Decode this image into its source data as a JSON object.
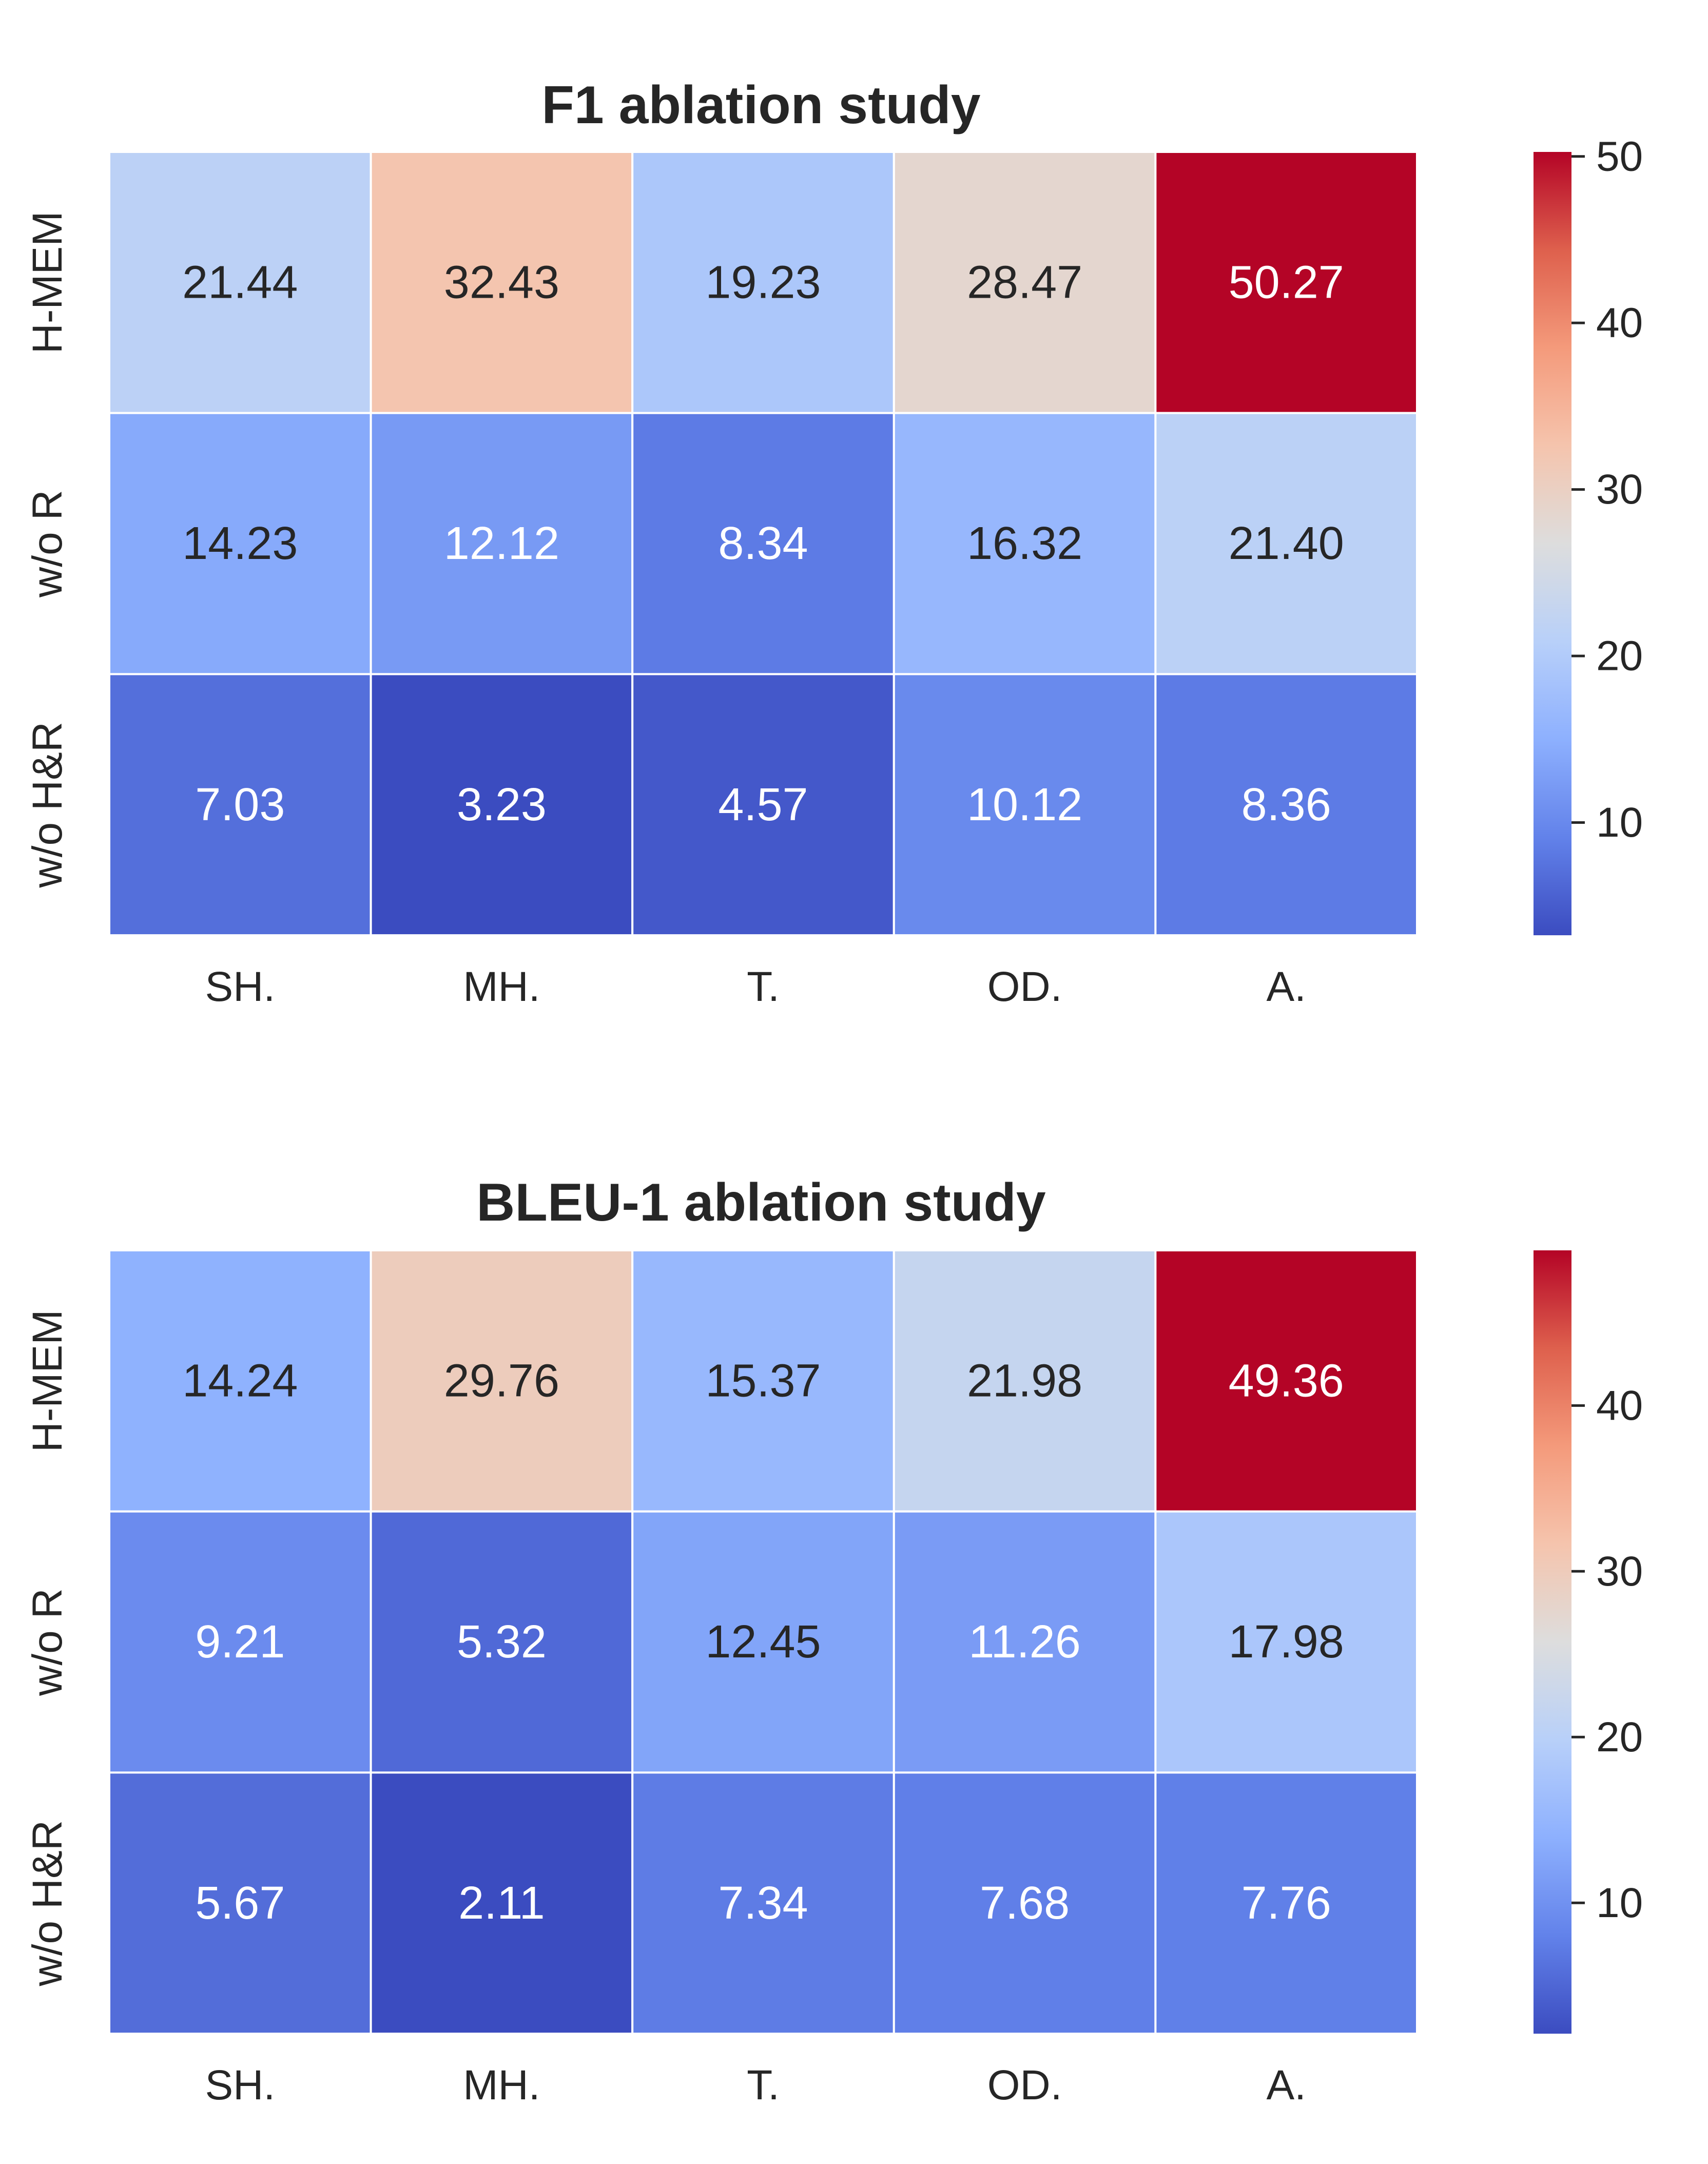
{
  "chart_data": [
    {
      "type": "heatmap",
      "title": "F1 ablation study",
      "colormap": "coolwarm",
      "x_categories": [
        "SH.",
        "MH.",
        "T.",
        "OD.",
        "A."
      ],
      "y_categories": [
        "H-MEM",
        "w/o R",
        "w/o H&R"
      ],
      "values": [
        [
          21.44,
          32.43,
          19.23,
          28.47,
          50.27
        ],
        [
          14.23,
          12.12,
          8.34,
          16.32,
          21.4
        ],
        [
          7.03,
          3.23,
          4.57,
          10.12,
          8.36
        ]
      ],
      "value_format": "2 decimals",
      "color_range": [
        3.23,
        50.27
      ],
      "colorbar_ticks": [
        10,
        20,
        30,
        40,
        50
      ],
      "grid_lines": "white",
      "colorbar_placement": "right"
    },
    {
      "type": "heatmap",
      "title": "BLEU-1 ablation study",
      "colormap": "coolwarm",
      "x_categories": [
        "SH.",
        "MH.",
        "T.",
        "OD.",
        "A."
      ],
      "y_categories": [
        "H-MEM",
        "w/o R",
        "w/o H&R"
      ],
      "values": [
        [
          14.24,
          29.76,
          15.37,
          21.98,
          49.36
        ],
        [
          9.21,
          5.32,
          12.45,
          11.26,
          17.98
        ],
        [
          5.67,
          2.11,
          7.34,
          7.68,
          7.76
        ]
      ],
      "value_format": "2 decimals",
      "color_range": [
        2.11,
        49.36
      ],
      "colorbar_ticks": [
        10,
        20,
        30,
        40
      ],
      "grid_lines": "white",
      "colorbar_placement": "right"
    }
  ]
}
